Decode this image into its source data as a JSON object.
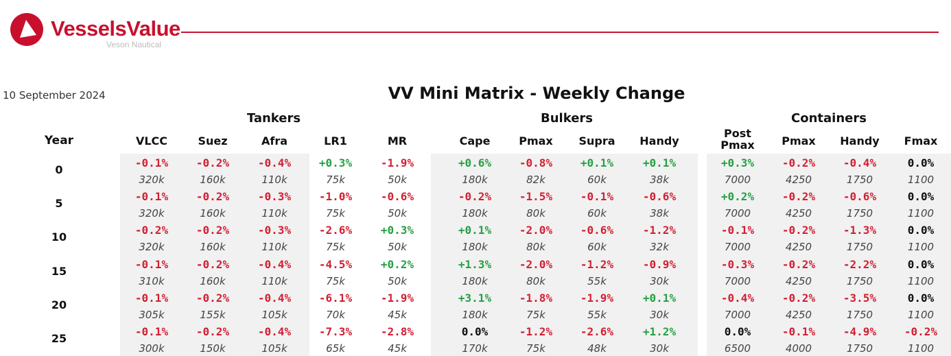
{
  "brand": {
    "name": "VesselsValue",
    "subtitle": "Veson Nautical"
  },
  "date": "10 September 2024",
  "title": "VV Mini Matrix - Weekly Change",
  "year_header": "Year",
  "groups": [
    {
      "name": "Tankers",
      "columns": [
        "VLCC",
        "Suez",
        "Afra",
        "LR1",
        "MR"
      ]
    },
    {
      "name": "Bulkers",
      "columns": [
        "Cape",
        "Pmax",
        "Supra",
        "Handy"
      ]
    },
    {
      "name": "Containers",
      "columns": [
        "Post Pmax",
        "Pmax",
        "Handy",
        "Fmax"
      ]
    }
  ],
  "rows": [
    {
      "year": "0",
      "changes": [
        "-0.1%",
        "-0.2%",
        "-0.4%",
        "+0.3%",
        "-1.9%",
        "+0.6%",
        "-0.8%",
        "+0.1%",
        "+0.1%",
        "+0.3%",
        "-0.2%",
        "-0.4%",
        "0.0%"
      ],
      "sizes": [
        "320k",
        "160k",
        "110k",
        "75k",
        "50k",
        "180k",
        "82k",
        "60k",
        "38k",
        "7000",
        "4250",
        "1750",
        "1100"
      ]
    },
    {
      "year": "5",
      "changes": [
        "-0.1%",
        "-0.2%",
        "-0.3%",
        "-1.0%",
        "-0.6%",
        "-0.2%",
        "-1.5%",
        "-0.1%",
        "-0.6%",
        "+0.2%",
        "-0.2%",
        "-0.6%",
        "0.0%"
      ],
      "sizes": [
        "320k",
        "160k",
        "110k",
        "75k",
        "50k",
        "180k",
        "80k",
        "60k",
        "38k",
        "7000",
        "4250",
        "1750",
        "1100"
      ]
    },
    {
      "year": "10",
      "changes": [
        "-0.2%",
        "-0.2%",
        "-0.3%",
        "-2.6%",
        "+0.3%",
        "+0.1%",
        "-2.0%",
        "-0.6%",
        "-1.2%",
        "-0.1%",
        "-0.2%",
        "-1.3%",
        "0.0%"
      ],
      "sizes": [
        "320k",
        "160k",
        "110k",
        "75k",
        "50k",
        "180k",
        "80k",
        "60k",
        "32k",
        "7000",
        "4250",
        "1750",
        "1100"
      ]
    },
    {
      "year": "15",
      "changes": [
        "-0.1%",
        "-0.2%",
        "-0.4%",
        "-4.5%",
        "+0.2%",
        "+1.3%",
        "-2.0%",
        "-1.2%",
        "-0.9%",
        "-0.3%",
        "-0.2%",
        "-2.2%",
        "0.0%"
      ],
      "sizes": [
        "310k",
        "160k",
        "110k",
        "75k",
        "50k",
        "180k",
        "80k",
        "55k",
        "30k",
        "7000",
        "4250",
        "1750",
        "1100"
      ]
    },
    {
      "year": "20",
      "changes": [
        "-0.1%",
        "-0.2%",
        "-0.4%",
        "-6.1%",
        "-1.9%",
        "+3.1%",
        "-1.8%",
        "-1.9%",
        "+0.1%",
        "-0.4%",
        "-0.2%",
        "-3.5%",
        "0.0%"
      ],
      "sizes": [
        "305k",
        "155k",
        "105k",
        "70k",
        "45k",
        "180k",
        "75k",
        "55k",
        "30k",
        "7000",
        "4250",
        "1750",
        "1100"
      ]
    },
    {
      "year": "25",
      "changes": [
        "-0.1%",
        "-0.2%",
        "-0.4%",
        "-7.3%",
        "-2.8%",
        "0.0%",
        "-1.2%",
        "-2.6%",
        "+1.2%",
        "0.0%",
        "-0.1%",
        "-4.9%",
        "-0.2%"
      ],
      "sizes": [
        "300k",
        "150k",
        "105k",
        "65k",
        "45k",
        "170k",
        "75k",
        "48k",
        "30k",
        "6500",
        "4000",
        "1750",
        "1100"
      ]
    }
  ],
  "colors": {
    "brand": "#c8102e",
    "negative": "#d21f32",
    "positive": "#26a043",
    "neutral": "#111111",
    "panel": "#f1f1f1"
  }
}
